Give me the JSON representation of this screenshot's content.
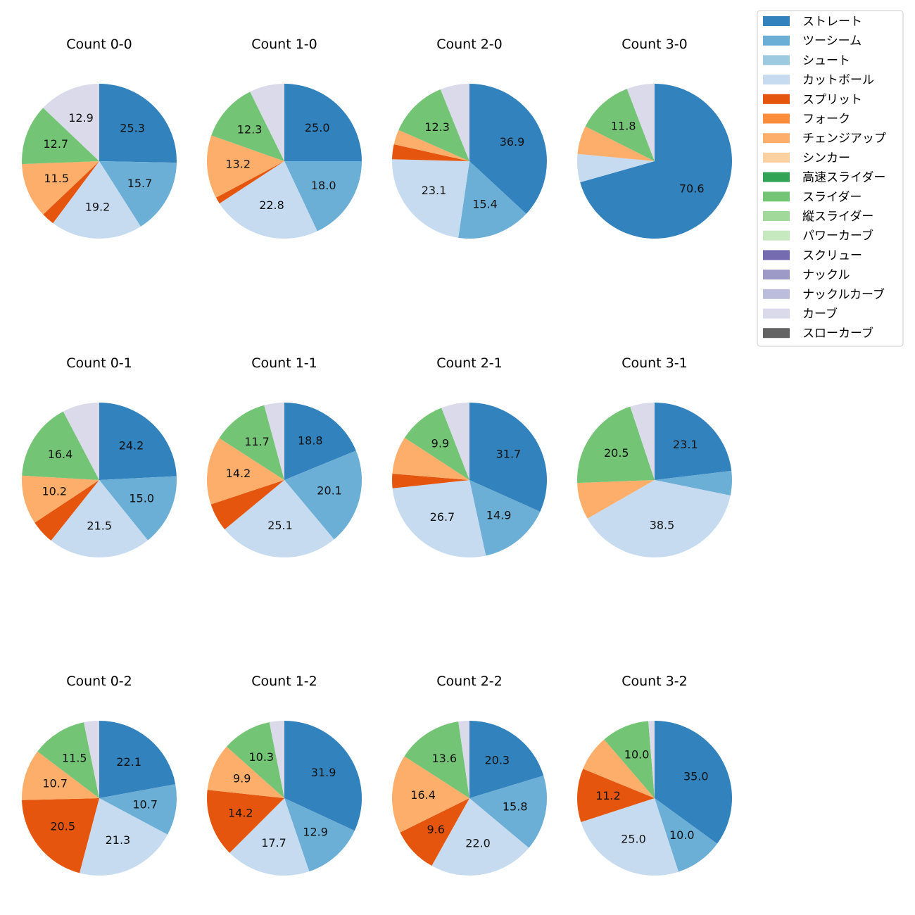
{
  "colors": {
    "ストレート": "#3182bd",
    "ツーシーム": "#6baed6",
    "シュート": "#9ecae1",
    "カットボール": "#c6dbef",
    "スプリット": "#e6550d",
    "フォーク": "#fd8d3c",
    "チェンジアップ": "#fdae6b",
    "シンカー": "#fdd0a2",
    "高速スライダー": "#31a354",
    "スライダー": "#74c476",
    "縦スライダー": "#a1d99b",
    "パワーカーブ": "#c7e9c0",
    "スクリュー": "#756bb1",
    "ナックル": "#9e9ac8",
    "ナックルカーブ": "#bcbddc",
    "カーブ": "#dadaeb",
    "スローカーブ": "#636363"
  },
  "legend": [
    "ストレート",
    "ツーシーム",
    "シュート",
    "カットボール",
    "スプリット",
    "フォーク",
    "チェンジアップ",
    "シンカー",
    "高速スライダー",
    "スライダー",
    "縦スライダー",
    "パワーカーブ",
    "スクリュー",
    "ナックル",
    "ナックルカーブ",
    "カーブ",
    "スローカーブ"
  ],
  "chart_data": [
    {
      "type": "pie",
      "title": "Count 0-0",
      "slices": [
        {
          "pitch": "ストレート",
          "value": 25.3
        },
        {
          "pitch": "ツーシーム",
          "value": 15.7
        },
        {
          "pitch": "カットボール",
          "value": 19.2
        },
        {
          "pitch": "スプリット",
          "value": 2.7
        },
        {
          "pitch": "チェンジアップ",
          "value": 11.5
        },
        {
          "pitch": "スライダー",
          "value": 12.7
        },
        {
          "pitch": "カーブ",
          "value": 12.9
        }
      ],
      "labels": [
        "25.3",
        "15.7",
        "19.2",
        null,
        "11.5",
        "12.7",
        "12.9"
      ]
    },
    {
      "type": "pie",
      "title": "Count 1-0",
      "slices": [
        {
          "pitch": "ストレート",
          "value": 25.0
        },
        {
          "pitch": "ツーシーム",
          "value": 18.0
        },
        {
          "pitch": "カットボール",
          "value": 22.8
        },
        {
          "pitch": "スプリット",
          "value": 1.4
        },
        {
          "pitch": "チェンジアップ",
          "value": 13.2
        },
        {
          "pitch": "スライダー",
          "value": 12.3
        },
        {
          "pitch": "カーブ",
          "value": 7.3
        }
      ],
      "labels": [
        "25.0",
        "18.0",
        "22.8",
        null,
        "13.2",
        "12.3",
        null
      ]
    },
    {
      "type": "pie",
      "title": "Count 2-0",
      "slices": [
        {
          "pitch": "ストレート",
          "value": 36.9
        },
        {
          "pitch": "ツーシーム",
          "value": 15.4
        },
        {
          "pitch": "カットボール",
          "value": 23.1
        },
        {
          "pitch": "スプリット",
          "value": 3.1
        },
        {
          "pitch": "チェンジアップ",
          "value": 3.1
        },
        {
          "pitch": "スライダー",
          "value": 12.3
        },
        {
          "pitch": "カーブ",
          "value": 6.1
        }
      ],
      "labels": [
        "36.9",
        "15.4",
        "23.1",
        null,
        null,
        "12.3",
        null
      ]
    },
    {
      "type": "pie",
      "title": "Count 3-0",
      "slices": [
        {
          "pitch": "ストレート",
          "value": 70.6
        },
        {
          "pitch": "カットボール",
          "value": 5.9
        },
        {
          "pitch": "チェンジアップ",
          "value": 5.9
        },
        {
          "pitch": "スライダー",
          "value": 11.8
        },
        {
          "pitch": "カーブ",
          "value": 5.8
        }
      ],
      "labels": [
        "70.6",
        null,
        null,
        "11.8",
        null
      ]
    },
    {
      "type": "pie",
      "title": "Count 0-1",
      "slices": [
        {
          "pitch": "ストレート",
          "value": 24.2
        },
        {
          "pitch": "ツーシーム",
          "value": 15.0
        },
        {
          "pitch": "カットボール",
          "value": 21.5
        },
        {
          "pitch": "スプリット",
          "value": 5.0
        },
        {
          "pitch": "チェンジアップ",
          "value": 10.2
        },
        {
          "pitch": "スライダー",
          "value": 16.4
        },
        {
          "pitch": "カーブ",
          "value": 7.7
        }
      ],
      "labels": [
        "24.2",
        "15.0",
        "21.5",
        null,
        "10.2",
        "16.4",
        null
      ]
    },
    {
      "type": "pie",
      "title": "Count 1-1",
      "slices": [
        {
          "pitch": "ストレート",
          "value": 18.8
        },
        {
          "pitch": "ツーシーム",
          "value": 20.1
        },
        {
          "pitch": "カットボール",
          "value": 25.1
        },
        {
          "pitch": "スプリット",
          "value": 5.9
        },
        {
          "pitch": "チェンジアップ",
          "value": 14.2
        },
        {
          "pitch": "スライダー",
          "value": 11.7
        },
        {
          "pitch": "カーブ",
          "value": 4.2
        }
      ],
      "labels": [
        "18.8",
        "20.1",
        "25.1",
        null,
        "14.2",
        "11.7",
        null
      ]
    },
    {
      "type": "pie",
      "title": "Count 2-1",
      "slices": [
        {
          "pitch": "ストレート",
          "value": 31.7
        },
        {
          "pitch": "ツーシーム",
          "value": 14.9
        },
        {
          "pitch": "カットボール",
          "value": 26.7
        },
        {
          "pitch": "スプリット",
          "value": 3.0
        },
        {
          "pitch": "チェンジアップ",
          "value": 7.9
        },
        {
          "pitch": "スライダー",
          "value": 9.9
        },
        {
          "pitch": "カーブ",
          "value": 5.9
        }
      ],
      "labels": [
        "31.7",
        "14.9",
        "26.7",
        null,
        null,
        "9.9",
        null
      ]
    },
    {
      "type": "pie",
      "title": "Count 3-1",
      "slices": [
        {
          "pitch": "ストレート",
          "value": 23.1
        },
        {
          "pitch": "ツーシーム",
          "value": 5.1
        },
        {
          "pitch": "カットボール",
          "value": 38.5
        },
        {
          "pitch": "チェンジアップ",
          "value": 7.7
        },
        {
          "pitch": "スライダー",
          "value": 20.5
        },
        {
          "pitch": "カーブ",
          "value": 5.1
        }
      ],
      "labels": [
        "23.1",
        null,
        "38.5",
        null,
        "20.5",
        null
      ]
    },
    {
      "type": "pie",
      "title": "Count 0-2",
      "slices": [
        {
          "pitch": "ストレート",
          "value": 22.1
        },
        {
          "pitch": "ツーシーム",
          "value": 10.7
        },
        {
          "pitch": "カットボール",
          "value": 21.3
        },
        {
          "pitch": "スプリット",
          "value": 20.5
        },
        {
          "pitch": "チェンジアップ",
          "value": 10.7
        },
        {
          "pitch": "スライダー",
          "value": 11.5
        },
        {
          "pitch": "カーブ",
          "value": 3.2
        }
      ],
      "labels": [
        "22.1",
        "10.7",
        "21.3",
        "20.5",
        "10.7",
        "11.5",
        null
      ]
    },
    {
      "type": "pie",
      "title": "Count 1-2",
      "slices": [
        {
          "pitch": "ストレート",
          "value": 31.9
        },
        {
          "pitch": "ツーシーム",
          "value": 12.9
        },
        {
          "pitch": "カットボール",
          "value": 17.7
        },
        {
          "pitch": "スプリット",
          "value": 14.2
        },
        {
          "pitch": "チェンジアップ",
          "value": 9.9
        },
        {
          "pitch": "スライダー",
          "value": 10.3
        },
        {
          "pitch": "カーブ",
          "value": 3.1
        }
      ],
      "labels": [
        "31.9",
        "12.9",
        "17.7",
        "14.2",
        "9.9",
        "10.3",
        null
      ]
    },
    {
      "type": "pie",
      "title": "Count 2-2",
      "slices": [
        {
          "pitch": "ストレート",
          "value": 20.3
        },
        {
          "pitch": "ツーシーム",
          "value": 15.8
        },
        {
          "pitch": "カットボール",
          "value": 22.0
        },
        {
          "pitch": "スプリット",
          "value": 9.6
        },
        {
          "pitch": "チェンジアップ",
          "value": 16.4
        },
        {
          "pitch": "スライダー",
          "value": 13.6
        },
        {
          "pitch": "カーブ",
          "value": 2.3
        }
      ],
      "labels": [
        "20.3",
        "15.8",
        "22.0",
        "9.6",
        "16.4",
        "13.6",
        null
      ]
    },
    {
      "type": "pie",
      "title": "Count 3-2",
      "slices": [
        {
          "pitch": "ストレート",
          "value": 35.0
        },
        {
          "pitch": "ツーシーム",
          "value": 10.0
        },
        {
          "pitch": "カットボール",
          "value": 25.0
        },
        {
          "pitch": "スプリット",
          "value": 11.2
        },
        {
          "pitch": "チェンジアップ",
          "value": 7.5
        },
        {
          "pitch": "スライダー",
          "value": 10.0
        },
        {
          "pitch": "カーブ",
          "value": 1.3
        }
      ],
      "labels": [
        "35.0",
        "10.0",
        "25.0",
        "11.2",
        null,
        "10.0",
        null
      ]
    }
  ]
}
